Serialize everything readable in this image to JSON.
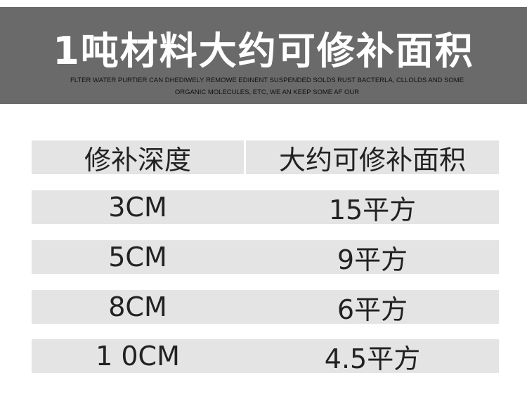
{
  "header": {
    "title": "1吨材料大约可修补面积",
    "subtitle": "FLTER WATER PURTIER CAN DHEDIWELY REMOWE EDINENT SUSPENDED SOLDS RUST BACTERLA, CLLOLDS AND SOME ORGANIC MOLECULES, ETC, WE AN KEEP SOME AF OUR"
  },
  "table": {
    "columns": [
      "修补深度",
      "大约可修补面积"
    ],
    "rows": [
      [
        "3CM",
        "15平方"
      ],
      [
        "5CM",
        "9平方"
      ],
      [
        "8CM",
        "6平方"
      ],
      [
        "1 0CM",
        "4.5平方"
      ]
    ]
  }
}
